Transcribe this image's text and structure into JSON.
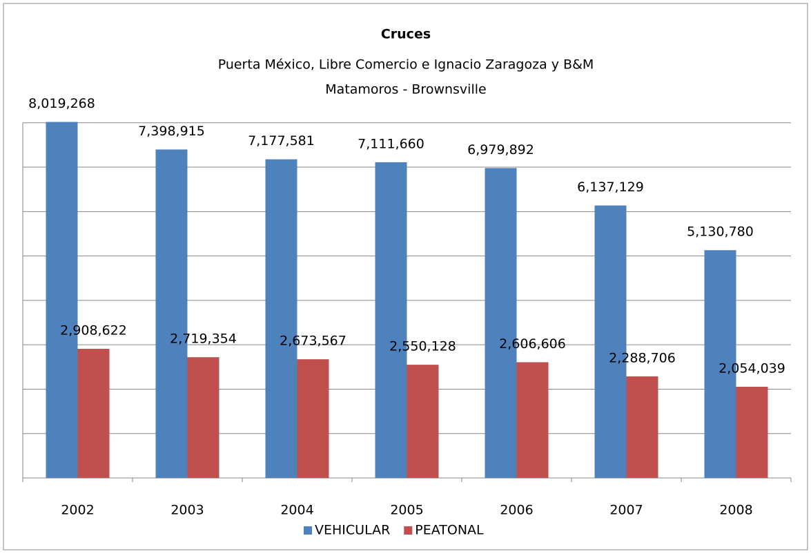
{
  "chart_data": {
    "type": "bar",
    "title": "Cruces",
    "subtitle": [
      "Puerta México, Libre Comercio e Ignacio Zaragoza y B&M",
      "Matamoros - Brownsville"
    ],
    "categories": [
      "2002",
      "2003",
      "2004",
      "2005",
      "2006",
      "2007",
      "2008"
    ],
    "series": [
      {
        "name": "VEHICULAR",
        "color": "#4f81bd",
        "values": [
          8019268,
          7398915,
          7177581,
          7111660,
          6979892,
          6137129,
          5130780
        ],
        "value_labels": [
          "8,019,268",
          "7,398,915",
          "7,177,581",
          "7,111,660",
          "6,979,892",
          "6,137,129",
          "5,130,780"
        ]
      },
      {
        "name": "PEATONAL",
        "color": "#c0504d",
        "values": [
          2908622,
          2719354,
          2673567,
          2550128,
          2606606,
          2288706,
          2054039
        ],
        "value_labels": [
          "2,908,622",
          "2,719,354",
          "2,673,567",
          "2,550,128",
          "2,606,606",
          "2,288,706",
          "2,054,039"
        ]
      }
    ],
    "ylim": [
      0,
      9000000
    ],
    "yticks": [
      0,
      1000000,
      2000000,
      3000000,
      4000000,
      5000000,
      6000000,
      7000000,
      8000000
    ],
    "grid": true,
    "legend": "bottom"
  }
}
